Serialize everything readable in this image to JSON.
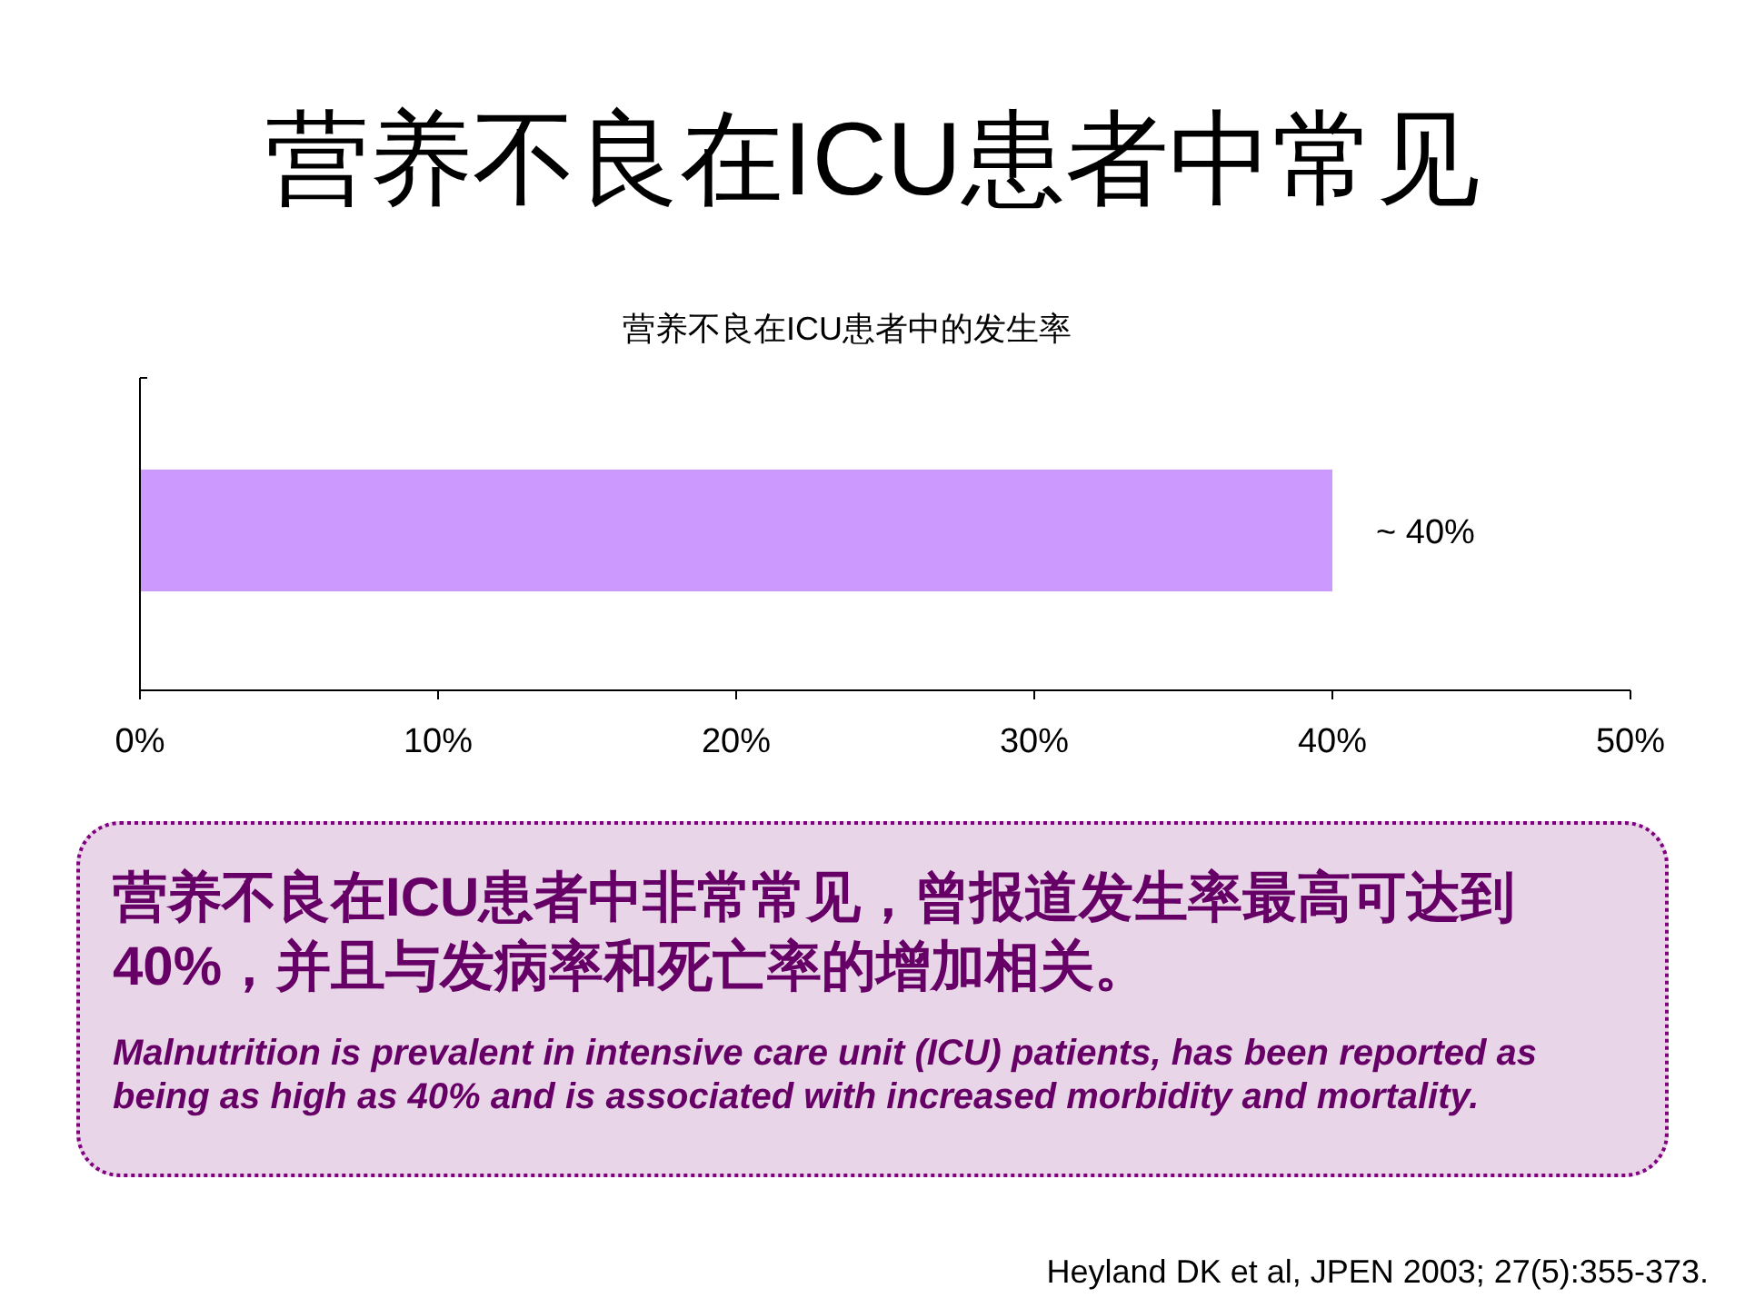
{
  "chart_data": {
    "type": "bar",
    "orientation": "horizontal",
    "title": "营养不良在ICU患者中常见",
    "subtitle": "营养不良在ICU患者中的发生率",
    "categories": [
      null
    ],
    "values": [
      40
    ],
    "value_labels": [
      "~ 40%"
    ],
    "color": "#cc99ff",
    "xlim": [
      0,
      50
    ],
    "xticks": [
      {
        "value": 0,
        "label": "0%"
      },
      {
        "value": 10,
        "label": "10%"
      },
      {
        "value": 20,
        "label": "20%"
      },
      {
        "value": 30,
        "label": "30%"
      },
      {
        "value": 40,
        "label": "40%"
      },
      {
        "value": 50,
        "label": "50%"
      }
    ],
    "annotations": [
      "营养不良在ICU患者中非常常见，曾报道发生率最高可达到40%，并且与发病率和死亡率的增加相关。",
      "Malnutrition is prevalent in intensive care unit (ICU) patients, has been reported as being as high as 40% and is associated with increased morbidity and mortality.",
      "Heyland DK et al, JPEN 2003; 27(5):355-373."
    ]
  }
}
